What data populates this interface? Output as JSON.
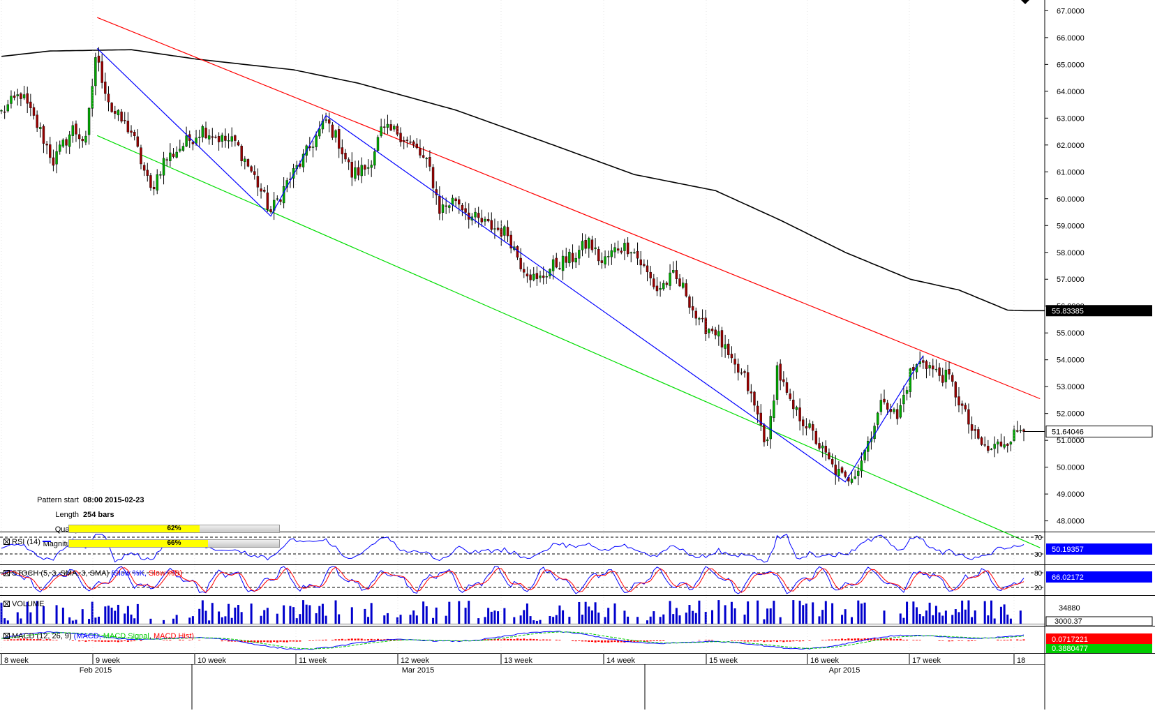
{
  "chart_data": [
    {
      "type": "candlestick",
      "title": "",
      "ylim": [
        47.6,
        67.4
      ],
      "y_ticks": [
        "67.0000",
        "66.0000",
        "65.0000",
        "64.0000",
        "63.0000",
        "62.0000",
        "61.0000",
        "60.0000",
        "59.0000",
        "58.0000",
        "57.0000",
        "56.0000",
        "55.0000",
        "54.0000",
        "53.0000",
        "52.0000",
        "51.0000",
        "50.0000",
        "49.0000",
        "48.0000"
      ],
      "y_tick_values": [
        67,
        66,
        65,
        64,
        63,
        62,
        61,
        60,
        59,
        58,
        57,
        56,
        55,
        54,
        53,
        52,
        51,
        50,
        49,
        48
      ],
      "x_week_labels": [
        "8 week",
        "9 week",
        "10 week",
        "11 week",
        "12 week",
        "13 week",
        "14 week",
        "15 week",
        "16 week",
        "17 week",
        "18"
      ],
      "x_month_labels": [
        "Feb 2015",
        "Mar 2015",
        "Apr 2015"
      ],
      "price_keypoints": [
        {
          "x": 0,
          "close": 63.2
        },
        {
          "x": 6,
          "close": 63.9
        },
        {
          "x": 12,
          "close": 62.5
        },
        {
          "x": 16,
          "close": 61.4
        },
        {
          "x": 22,
          "close": 62.6
        },
        {
          "x": 26,
          "close": 62.1
        },
        {
          "x": 29,
          "close": 65.3
        },
        {
          "x": 34,
          "close": 63.3
        },
        {
          "x": 40,
          "close": 62.5
        },
        {
          "x": 46,
          "close": 60.3
        },
        {
          "x": 50,
          "close": 61.4
        },
        {
          "x": 55,
          "close": 61.9
        },
        {
          "x": 62,
          "close": 62.6
        },
        {
          "x": 68,
          "close": 62.2
        },
        {
          "x": 72,
          "close": 62.1
        },
        {
          "x": 78,
          "close": 60.8
        },
        {
          "x": 83,
          "close": 59.5
        },
        {
          "x": 88,
          "close": 60.6
        },
        {
          "x": 93,
          "close": 61.5
        },
        {
          "x": 100,
          "close": 62.9
        },
        {
          "x": 104,
          "close": 62.1
        },
        {
          "x": 108,
          "close": 60.9
        },
        {
          "x": 113,
          "close": 61.2
        },
        {
          "x": 117,
          "close": 62.5
        },
        {
          "x": 122,
          "close": 62.5
        },
        {
          "x": 128,
          "close": 61.8
        },
        {
          "x": 132,
          "close": 61.1
        },
        {
          "x": 135,
          "close": 59.6
        },
        {
          "x": 140,
          "close": 60.0
        },
        {
          "x": 145,
          "close": 59.3
        },
        {
          "x": 150,
          "close": 59.0
        },
        {
          "x": 156,
          "close": 58.7
        },
        {
          "x": 160,
          "close": 57.6
        },
        {
          "x": 165,
          "close": 56.9
        },
        {
          "x": 170,
          "close": 57.5
        },
        {
          "x": 176,
          "close": 57.8
        },
        {
          "x": 181,
          "close": 58.4
        },
        {
          "x": 185,
          "close": 57.6
        },
        {
          "x": 190,
          "close": 58.2
        },
        {
          "x": 194,
          "close": 58.2
        },
        {
          "x": 197,
          "close": 57.6
        },
        {
          "x": 202,
          "close": 56.6
        },
        {
          "x": 207,
          "close": 57.1
        },
        {
          "x": 211,
          "close": 56.5
        },
        {
          "x": 215,
          "close": 55.3
        },
        {
          "x": 220,
          "close": 55.1
        },
        {
          "x": 225,
          "close": 53.8
        },
        {
          "x": 229,
          "close": 53.3
        },
        {
          "x": 233,
          "close": 51.9
        },
        {
          "x": 236,
          "close": 50.8
        },
        {
          "x": 239,
          "close": 53.7
        },
        {
          "x": 243,
          "close": 52.3
        },
        {
          "x": 248,
          "close": 51.6
        },
        {
          "x": 252,
          "close": 50.8
        },
        {
          "x": 256,
          "close": 50.0
        },
        {
          "x": 260,
          "close": 49.5
        },
        {
          "x": 264,
          "close": 50.0
        },
        {
          "x": 268,
          "close": 51.3
        },
        {
          "x": 272,
          "close": 52.6
        },
        {
          "x": 276,
          "close": 51.8
        },
        {
          "x": 280,
          "close": 53.5
        },
        {
          "x": 284,
          "close": 54.0
        },
        {
          "x": 288,
          "close": 53.5
        },
        {
          "x": 292,
          "close": 53.3
        },
        {
          "x": 296,
          "close": 52.2
        },
        {
          "x": 300,
          "close": 51.1
        },
        {
          "x": 304,
          "close": 50.6
        },
        {
          "x": 308,
          "close": 50.9
        },
        {
          "x": 312,
          "close": 51.2
        },
        {
          "x": 315,
          "close": 51.6
        }
      ],
      "ma_keypoints": [
        {
          "x": 0,
          "value": 65.3
        },
        {
          "x": 15,
          "value": 65.5
        },
        {
          "x": 40,
          "value": 65.55
        },
        {
          "x": 60,
          "value": 65.2
        },
        {
          "x": 90,
          "value": 64.8
        },
        {
          "x": 110,
          "value": 64.3
        },
        {
          "x": 140,
          "value": 63.3
        },
        {
          "x": 170,
          "value": 62.0
        },
        {
          "x": 195,
          "value": 60.9
        },
        {
          "x": 220,
          "value": 60.3
        },
        {
          "x": 240,
          "value": 59.2
        },
        {
          "x": 260,
          "value": 58.0
        },
        {
          "x": 280,
          "value": 57.0
        },
        {
          "x": 295,
          "value": 56.6
        },
        {
          "x": 305,
          "value": 56.1
        },
        {
          "x": 310,
          "value": 55.85
        },
        {
          "x": 315,
          "value": 55.83
        }
      ],
      "lines": {
        "resistance": {
          "color": "#ff0000",
          "from": [
            29.5,
            66.75
          ],
          "to": [
            320,
            52.55
          ]
        },
        "support": {
          "color": "#00dd00",
          "from": [
            29.5,
            62.35
          ],
          "to": [
            320,
            47.0
          ]
        },
        "zigzag": {
          "color": "#0000ff",
          "points": [
            [
              29.5,
              65.6
            ],
            [
              83,
              59.35
            ],
            [
              100,
              63.1
            ],
            [
              260,
              49.45
            ],
            [
              284,
              54.15
            ]
          ]
        }
      },
      "last_price": "51.64046",
      "ma_label": "55.83385",
      "pattern_info": [
        {
          "key": "Pattern start",
          "value": "08:00 2015-02-23"
        },
        {
          "key": "Length",
          "value": "254 bars"
        }
      ],
      "quality": {
        "label": "Quality",
        "value": 0.62,
        "text": "62%"
      },
      "magnitude": {
        "label": "Magnitude",
        "value": 0.66,
        "text": "66%"
      }
    },
    {
      "type": "line",
      "label": "RSI (14)",
      "levels": [
        "70",
        "30"
      ],
      "current_value": "50.19357",
      "series": [
        {
          "name": "RSI",
          "color": "#0000ff"
        }
      ]
    },
    {
      "type": "line",
      "label": "STOCH (5, 3, SMA, 3, SMA)",
      "legend": [
        "(Slow %K",
        "Slow %D)"
      ],
      "levels": [
        "80",
        "20"
      ],
      "current_value": "66.02172",
      "series": [
        {
          "name": "Slow %K",
          "color": "#0000ff"
        },
        {
          "name": "Slow %D",
          "color": "#ff0000"
        }
      ]
    },
    {
      "type": "bar",
      "label": "VOLUME",
      "axis_label": "34880",
      "current_value": "3000.37",
      "series": [
        {
          "name": "VOLUME",
          "color": "#0000cc"
        }
      ]
    },
    {
      "type": "line",
      "label": "MACD (12, 26, 9)",
      "legend": [
        "(MACD",
        "MACD Signal",
        "MACD Hist)"
      ],
      "current_value": "0.0717221",
      "current_value_2": "0.3880477",
      "series": [
        {
          "name": "MACD",
          "color": "#0000ff"
        },
        {
          "name": "MACD Signal",
          "color": "#00cc00"
        },
        {
          "name": "MACD Hist",
          "color": "#ff0000"
        }
      ]
    }
  ],
  "colors": {
    "bull": "#00aa00",
    "bear": "#990000",
    "grid": "#000000",
    "label_bg": "#000000"
  }
}
